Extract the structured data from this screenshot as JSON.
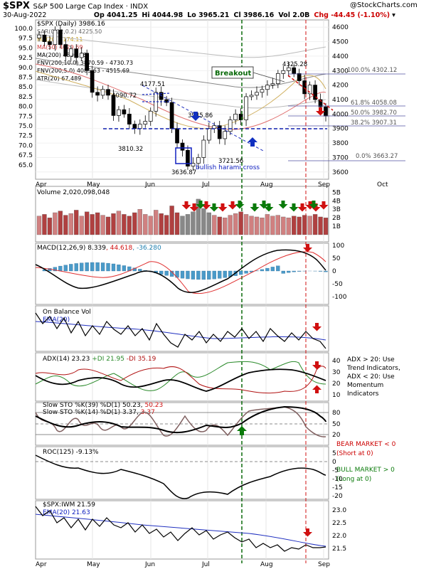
{
  "header": {
    "symbol": "$SPX",
    "name": "S&P 500 Large Cap Index",
    "exchange": "INDX",
    "date": "30-Aug-2022",
    "open": "Op 4041.25",
    "high": "Hi 4044.98",
    "low": "Lo 3965.21",
    "close": "Cl 3986.16",
    "volume": "Vol 2.0B",
    "change": "Chg -44.45 (-1.10%)",
    "watermark": "@StockCharts.com"
  },
  "colors": {
    "up": "#2a8a2a",
    "down": "#d42020",
    "grid": "#dddddd",
    "panel_border": "#999999"
  },
  "chart_data": [
    {
      "type": "line",
      "panel": "price",
      "legend": [
        "$SPX (Daily) 3986.16",
        "SAR(0.02,0.2) 4225.50",
        "MA(20) 4174.11",
        "MA(50) 4029.69",
        "MA(200) 4300.66",
        "ENV(200,10.0) 3870.59 - 4730.73",
        "ENV(200,5.0) 4085.63 - 4515.69",
        "ATR(20) 67.489"
      ],
      "y_ticks": [
        4600,
        4500,
        4400,
        4300,
        4200,
        4100,
        4000,
        3900,
        3800,
        3700,
        3600
      ],
      "y_ticks_ratio": [
        "100.0",
        "97.5",
        "95.0",
        "92.5",
        "90.0",
        "87.5",
        "85.0",
        "82.5",
        "80.0",
        "77.5",
        "75.0",
        "72.5",
        "70.0",
        "67.5",
        "65.0"
      ],
      "x_ticks": [
        "Apr",
        "May",
        "Jun",
        "Jul",
        "Aug",
        "Sep",
        "Oct"
      ],
      "price_labels": [
        "4177.51",
        "4090.72",
        "3810.32",
        "3636.87",
        "3721.56",
        "4325.28"
      ],
      "price_labels_alt": [
        "3945.86"
      ],
      "fib_labels": [
        "100.0% 4302.12",
        "61.8% 4058.08",
        "50.0% 3982.70",
        "38.2% 3907.31",
        "0.0% 3663.27"
      ],
      "fib_values": [
        4302.12,
        4058.08,
        3982.7,
        3907.31,
        3663.27
      ],
      "annotations": [
        "Breakout",
        "bullish harami cross"
      ],
      "support_level": 3900,
      "close_series": [
        4546,
        4500,
        4480,
        4580,
        4480,
        4400,
        4450,
        4390,
        4420,
        4300,
        4150,
        4130,
        4170,
        4130,
        3990,
        4030,
        4000,
        3930,
        3900,
        3930,
        3950,
        4020,
        4150,
        4100,
        4080,
        3900,
        3800,
        3750,
        3640,
        3660,
        3700,
        3820,
        3900,
        3920,
        3830,
        3880,
        3960,
        4000,
        3960,
        4120,
        4130,
        4150,
        4170,
        4200,
        4210,
        4280,
        4300,
        4320,
        4280,
        4230,
        4140,
        4200,
        4100,
        4050,
        3986
      ],
      "series": [
        {
          "name": "MA(200)",
          "values": [
            4480,
            4470,
            4460,
            4450,
            4440,
            4430,
            4420,
            4410,
            4400,
            4390,
            4380,
            4370,
            4360,
            4350,
            4340,
            4330,
            4320,
            4310,
            4300
          ]
        },
        {
          "name": "MA(50)",
          "values": [
            4400,
            4350,
            4250,
            4150,
            4100,
            4050,
            3950,
            3900,
            3880,
            3880,
            3900,
            3950,
            4000,
            4030
          ]
        }
      ]
    },
    {
      "type": "bar",
      "panel": "volume",
      "legend": "Volume 2,020,098,048",
      "y_ticks": [
        "5B",
        "4B",
        "3B",
        "2B",
        "1B"
      ],
      "values": [
        2.2,
        2.4,
        2.0,
        2.6,
        2.8,
        2.3,
        2.5,
        2.9,
        2.2,
        2.7,
        2.4,
        2.6,
        2.3,
        2.1,
        2.5,
        2.8,
        2.4,
        2.2,
        2.6,
        3.0,
        2.4,
        2.2,
        2.9,
        2.5,
        2.3,
        3.4,
        2.6,
        2.2,
        2.4,
        2.7,
        4.2,
        3.1,
        2.6,
        2.3,
        2.1,
        2.0,
        2.3,
        2.5,
        2.7,
        2.4,
        2.2,
        2.1,
        2.0,
        2.4,
        2.2,
        2.3,
        2.1,
        2.0,
        2.2,
        2.1,
        2.3,
        2.2,
        2.4,
        2.1,
        2.0
      ]
    },
    {
      "type": "line",
      "panel": "macd",
      "legend": [
        "MACD(12,26,9)",
        "8.339",
        "44.618",
        "-36.280"
      ],
      "y_ticks": [
        "100",
        "50",
        "0",
        "-50",
        "-100"
      ]
    },
    {
      "type": "line",
      "panel": "obv",
      "legend": [
        "On Balance Vol",
        "EMA(20)"
      ]
    },
    {
      "type": "line",
      "panel": "adx",
      "legend": [
        "ADX(14) 23.23",
        "+DI 21.95",
        "-DI 35.19"
      ],
      "y_ticks": [
        "40",
        "30",
        "20",
        "10"
      ],
      "note": [
        "ADX > 20: Use",
        "Trend Indicators,",
        "ADX < 20: Use",
        "Momentum",
        "Indicators"
      ]
    },
    {
      "type": "line",
      "panel": "sto",
      "legend": [
        "Slow STO %K(39) %D(1) 50.23, 50.23",
        "Slow STO %K(14) %D(1) 3.37, 3.37"
      ],
      "legend_parts": [
        "Slow STO %K(39) %D(1) ",
        "50.23",
        ", ",
        "50.23",
        "Slow STO %K(14) %D(1) ",
        "3.37",
        ", ",
        "3.37"
      ],
      "y_ticks": [
        "80",
        "50",
        "20"
      ]
    },
    {
      "type": "line",
      "panel": "roc",
      "legend": "ROC(125) -9.13%",
      "y_ticks": [
        "5",
        "0",
        "-5",
        "-10",
        "-15",
        "-20"
      ],
      "note_bear": [
        "BEAR MARKET < 0",
        "(Short at 0)"
      ],
      "note_bull": [
        "BULL MARKET > 0",
        "(Long at 0)"
      ]
    },
    {
      "type": "line",
      "panel": "ratio",
      "legend": [
        "$SPX:IWM 21.59",
        "EMA(20) 21.63"
      ],
      "y_ticks": [
        "23.0",
        "22.5",
        "22.0",
        "21.5"
      ],
      "x_ticks": [
        "Apr",
        "May",
        "Jun",
        "Jul",
        "Aug",
        "Sep"
      ]
    }
  ]
}
